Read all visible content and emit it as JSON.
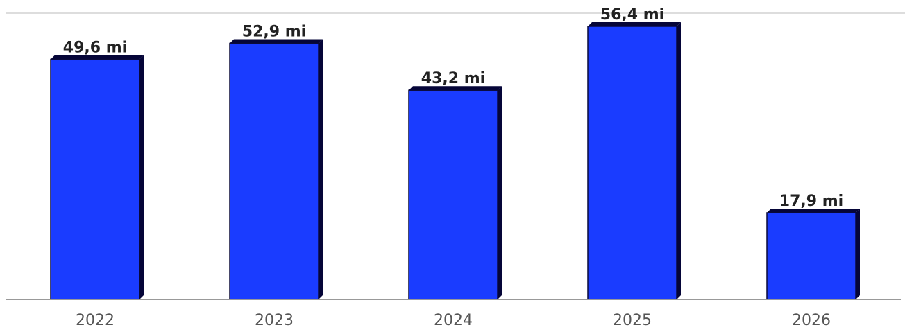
{
  "chart_data": {
    "type": "bar",
    "categories": [
      "2022",
      "2023",
      "2024",
      "2025",
      "2026"
    ],
    "values": [
      49.6,
      52.9,
      43.2,
      56.4,
      17.9
    ],
    "value_labels": [
      "49,6 mi",
      "52,9 mi",
      "43,2 mi",
      "56,4 mi",
      "17,9 mi"
    ],
    "title": "",
    "xlabel": "",
    "ylabel": "",
    "ylim": [
      0,
      56.4
    ],
    "grid": false,
    "legend": "none",
    "colors": {
      "bar": "#1a3cff",
      "bar_shadow": "#050538",
      "axis": "#999999",
      "top_line": "#dddddd"
    }
  }
}
